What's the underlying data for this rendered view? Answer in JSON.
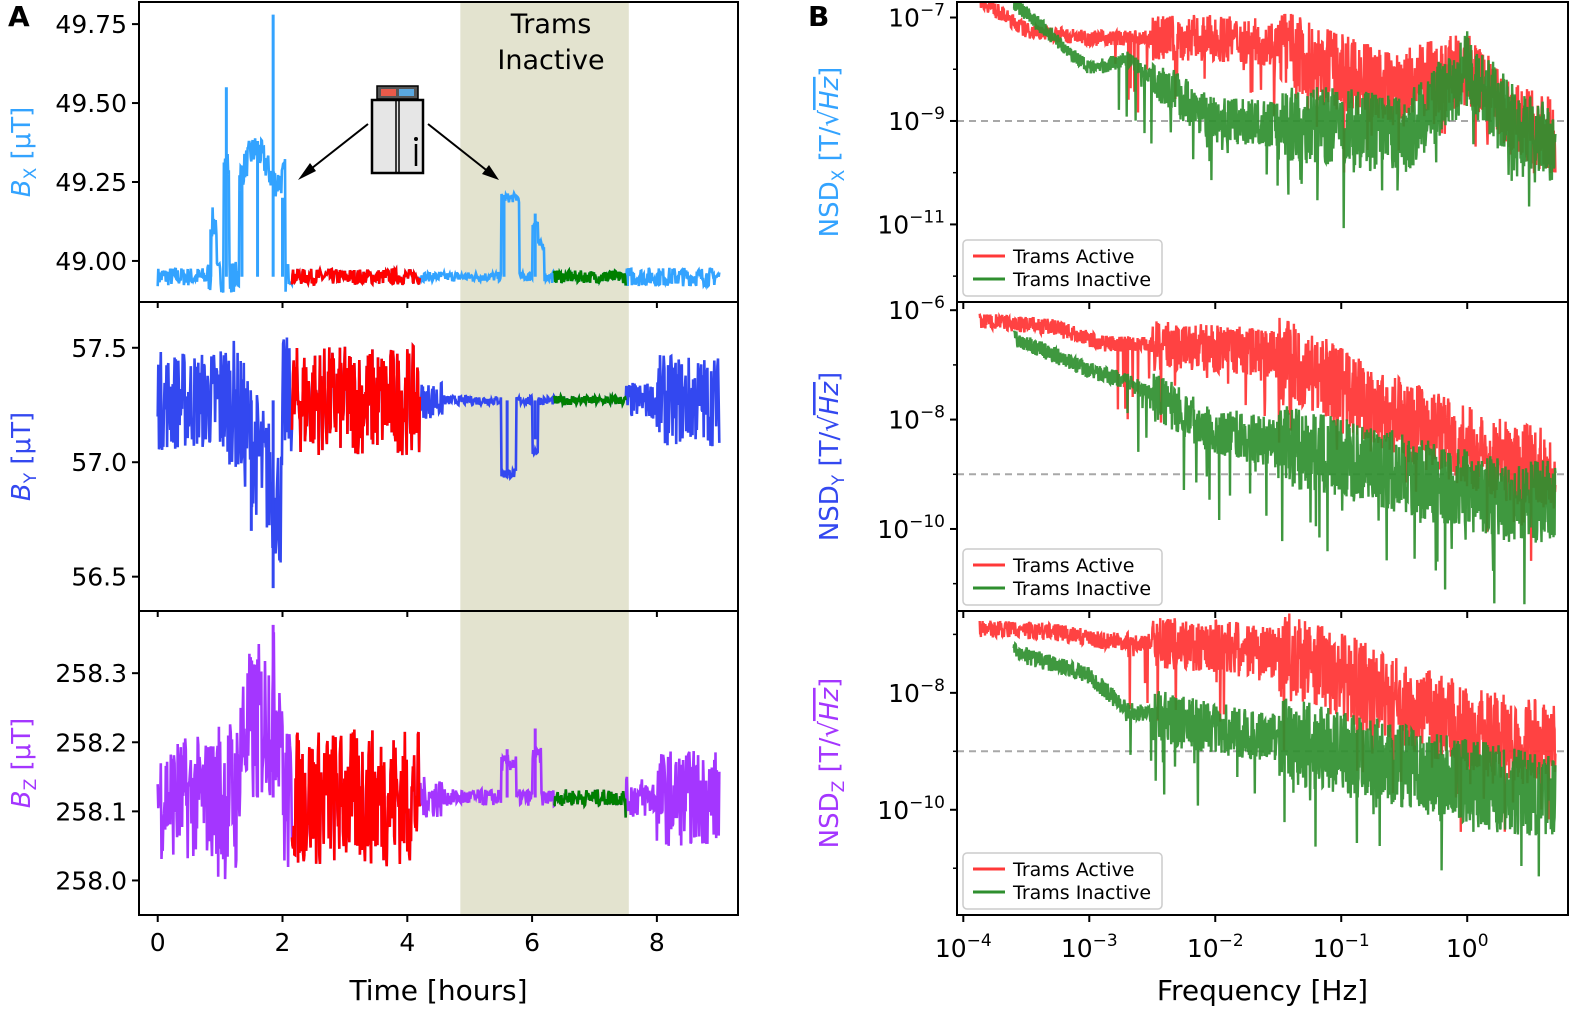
{
  "panel_labels": {
    "a": "A",
    "b": "B"
  },
  "colors": {
    "bx": "#33a3ff",
    "by": "#3348f0",
    "bz": "#a436ff",
    "active": "#ff0000",
    "inactive": "#008000",
    "active_line": "#ff3838",
    "inactive_line": "#2f8f2f",
    "shade": "#e3e3cf",
    "ref_line": "#a8a8a8"
  },
  "annotation": {
    "line1": "Trams",
    "line2": "Inactive",
    "icon": "tram-icon"
  },
  "chart_data": [
    {
      "id": "bx_time",
      "type": "line",
      "ylabel_main": "B",
      "ylabel_sub": "X",
      "ylabel_unit": "[μT]",
      "xlim": [
        -0.3,
        9.3
      ],
      "ylim": [
        48.87,
        49.82
      ],
      "yticks": [
        "49.00",
        "49.25",
        "49.50",
        "49.75"
      ],
      "ytick_values": [
        49.0,
        49.25,
        49.5,
        49.75
      ],
      "baseline": 48.95,
      "segments": [
        {
          "name": "Trams Active",
          "range": [
            2.15,
            4.2
          ],
          "color_key": "active"
        },
        {
          "name": "Trams Inactive",
          "range": [
            6.35,
            7.5
          ],
          "color_key": "inactive"
        }
      ],
      "shaded_region": [
        4.85,
        7.55
      ],
      "events": [
        {
          "t": 0.85,
          "v": 49.1
        },
        {
          "t": 1.1,
          "v": 49.55
        },
        {
          "t": 1.35,
          "v": 49.3
        },
        {
          "t": 1.6,
          "v": 49.38
        },
        {
          "t": 1.85,
          "v": 49.78
        },
        {
          "t": 2.0,
          "v": 49.2
        },
        {
          "t": 5.55,
          "v": 49.2
        },
        {
          "t": 6.05,
          "v": 49.15
        }
      ]
    },
    {
      "id": "by_time",
      "type": "line",
      "ylabel_main": "B",
      "ylabel_sub": "Y",
      "ylabel_unit": "[μT]",
      "xlim": [
        -0.3,
        9.3
      ],
      "ylim": [
        56.35,
        57.7
      ],
      "yticks": [
        "56.5",
        "57.0",
        "57.5"
      ],
      "ytick_values": [
        56.5,
        57.0,
        57.5
      ],
      "baseline": 57.27,
      "segments": [
        {
          "name": "Trams Active",
          "range": [
            2.15,
            4.2
          ],
          "color_key": "active"
        },
        {
          "name": "Trams Inactive",
          "range": [
            6.35,
            7.5
          ],
          "color_key": "inactive"
        }
      ],
      "shaded_region": [
        4.85,
        7.55
      ],
      "events": [
        {
          "t": 1.5,
          "v": 56.7
        },
        {
          "t": 1.85,
          "v": 56.45
        },
        {
          "t": 5.6,
          "v": 56.93
        },
        {
          "t": 6.05,
          "v": 57.1
        }
      ]
    },
    {
      "id": "bz_time",
      "type": "line",
      "ylabel_main": "B",
      "ylabel_sub": "Z",
      "ylabel_unit": "[μT]",
      "xlim": [
        -0.3,
        9.3
      ],
      "ylim": [
        257.95,
        258.39
      ],
      "yticks": [
        "258.0",
        "258.1",
        "258.2",
        "258.3"
      ],
      "ytick_values": [
        258.0,
        258.1,
        258.2,
        258.3
      ],
      "baseline": 258.12,
      "segments": [
        {
          "name": "Trams Active",
          "range": [
            2.15,
            4.2
          ],
          "color_key": "active"
        },
        {
          "name": "Trams Inactive",
          "range": [
            6.35,
            7.5
          ],
          "color_key": "inactive"
        }
      ],
      "shaded_region": [
        4.85,
        7.55
      ],
      "events": [
        {
          "t": 1.6,
          "v": 258.32
        },
        {
          "t": 1.85,
          "v": 258.37
        },
        {
          "t": 5.6,
          "v": 258.19
        },
        {
          "t": 6.05,
          "v": 258.22
        }
      ],
      "xlabel": "Time [hours]",
      "xticks": [
        "0",
        "2",
        "4",
        "6",
        "8"
      ],
      "xtick_values": [
        0,
        2,
        4,
        6,
        8
      ]
    },
    {
      "id": "nsd_x",
      "type": "line",
      "log_x": true,
      "log_y": true,
      "ylabel_prefix": "NSD",
      "ylabel_sub": "X",
      "ylabel_unit_open": "[T/√",
      "ylabel_unit_var": "Hz",
      "ylabel_unit_close": "]",
      "xlim_exp": [
        -4.05,
        0.8
      ],
      "ylim_exp": [
        -12.5,
        -6.7
      ],
      "yticks": [
        {
          "base": "10",
          "exp": "−7",
          "e": -7
        },
        {
          "base": "10",
          "exp": "−9",
          "e": -9
        },
        {
          "base": "10",
          "exp": "−11",
          "e": -11
        }
      ],
      "ref_level_exp": -9,
      "legend": [
        "Trams Active",
        "Trams Inactive"
      ],
      "series": [
        {
          "name": "Trams Active",
          "color_key": "active_line",
          "anchors": [
            [
              -3.87,
              -6.65
            ],
            [
              -3.5,
              -7.25
            ],
            [
              -3.0,
              -7.4
            ],
            [
              -2.0,
              -7.4
            ],
            [
              -1.5,
              -7.5
            ],
            [
              -1.2,
              -7.9
            ],
            [
              -0.6,
              -8.4
            ],
            [
              0.0,
              -8.0
            ],
            [
              0.35,
              -9.0
            ],
            [
              0.7,
              -9.3
            ]
          ]
        },
        {
          "name": "Trams Inactive",
          "color_key": "inactive_line",
          "anchors": [
            [
              -3.6,
              -6.7
            ],
            [
              -3.0,
              -8.0
            ],
            [
              -2.7,
              -7.8
            ],
            [
              -2.0,
              -9.0
            ],
            [
              -1.0,
              -9.1
            ],
            [
              -0.5,
              -9.3
            ],
            [
              0.0,
              -8.0
            ],
            [
              0.35,
              -9.0
            ],
            [
              0.7,
              -9.5
            ]
          ]
        }
      ]
    },
    {
      "id": "nsd_y",
      "type": "line",
      "log_x": true,
      "log_y": true,
      "ylabel_prefix": "NSD",
      "ylabel_sub": "Y",
      "ylabel_unit_open": "[T/√",
      "ylabel_unit_var": "Hz",
      "ylabel_unit_close": "]",
      "xlim_exp": [
        -4.05,
        0.8
      ],
      "ylim_exp": [
        -11.5,
        -5.85
      ],
      "yticks": [
        {
          "base": "10",
          "exp": "−6",
          "e": -6
        },
        {
          "base": "10",
          "exp": "−8",
          "e": -8
        },
        {
          "base": "10",
          "exp": "−10",
          "e": -10
        }
      ],
      "ref_level_exp": -9,
      "legend": [
        "Trams Active",
        "Trams Inactive"
      ],
      "series": [
        {
          "name": "Trams Active",
          "color_key": "active_line",
          "anchors": [
            [
              -3.87,
              -6.2
            ],
            [
              -3.3,
              -6.3
            ],
            [
              -2.9,
              -6.6
            ],
            [
              -2.0,
              -6.7
            ],
            [
              -1.5,
              -6.8
            ],
            [
              -1.0,
              -7.4
            ],
            [
              -0.5,
              -8.0
            ],
            [
              0.0,
              -8.5
            ],
            [
              0.35,
              -8.8
            ],
            [
              0.7,
              -8.9
            ]
          ]
        },
        {
          "name": "Trams Inactive",
          "color_key": "inactive_line",
          "anchors": [
            [
              -3.6,
              -6.5
            ],
            [
              -3.0,
              -7.1
            ],
            [
              -2.7,
              -7.3
            ],
            [
              -2.0,
              -8.2
            ],
            [
              -1.0,
              -8.7
            ],
            [
              -0.5,
              -9.0
            ],
            [
              0.0,
              -9.3
            ],
            [
              0.35,
              -9.5
            ],
            [
              0.7,
              -9.5
            ]
          ]
        }
      ]
    },
    {
      "id": "nsd_z",
      "type": "line",
      "log_x": true,
      "log_y": true,
      "ylabel_prefix": "NSD",
      "ylabel_sub": "Z",
      "ylabel_unit_open": "[T/√",
      "ylabel_unit_var": "Hz",
      "ylabel_unit_close": "]",
      "xlim_exp": [
        -4.05,
        0.8
      ],
      "ylim_exp": [
        -11.8,
        -6.6
      ],
      "yticks": [
        {
          "base": "10",
          "exp": "−8",
          "e": -8
        },
        {
          "base": "10",
          "exp": "−10",
          "e": -10
        }
      ],
      "ref_level_exp": -9,
      "legend": [
        "Trams Active",
        "Trams Inactive"
      ],
      "series": [
        {
          "name": "Trams Active",
          "color_key": "active_line",
          "anchors": [
            [
              -3.87,
              -6.9
            ],
            [
              -3.3,
              -6.95
            ],
            [
              -2.9,
              -7.1
            ],
            [
              -2.0,
              -7.2
            ],
            [
              -1.5,
              -7.3
            ],
            [
              -1.0,
              -7.7
            ],
            [
              -0.5,
              -8.2
            ],
            [
              0.0,
              -8.6
            ],
            [
              0.35,
              -8.8
            ],
            [
              0.7,
              -8.9
            ]
          ]
        },
        {
          "name": "Trams Inactive",
          "color_key": "inactive_line",
          "anchors": [
            [
              -3.6,
              -7.3
            ],
            [
              -3.0,
              -7.7
            ],
            [
              -2.7,
              -8.3
            ],
            [
              -2.0,
              -8.6
            ],
            [
              -1.0,
              -9.0
            ],
            [
              -0.5,
              -9.3
            ],
            [
              0.0,
              -9.5
            ],
            [
              0.35,
              -9.7
            ],
            [
              0.7,
              -9.8
            ]
          ]
        }
      ],
      "xlabel": "Frequency [Hz]",
      "xticks": [
        {
          "base": "10",
          "exp": "−4",
          "e": -4
        },
        {
          "base": "10",
          "exp": "−3",
          "e": -3
        },
        {
          "base": "10",
          "exp": "−2",
          "e": -2
        },
        {
          "base": "10",
          "exp": "−1",
          "e": -1
        },
        {
          "base": "10",
          "exp": "0",
          "e": 0
        }
      ]
    }
  ]
}
